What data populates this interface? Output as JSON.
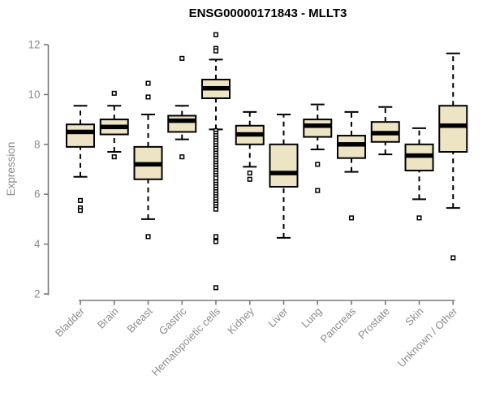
{
  "chart_data": {
    "type": "boxplot",
    "title": "ENSG00000171843 - MLLT3",
    "ylabel": "Expression",
    "xlabel": "",
    "ylim": [
      2,
      12
    ],
    "yticks": [
      2,
      4,
      6,
      8,
      10,
      12
    ],
    "grid": false,
    "legend": null,
    "categories": [
      "Bladder",
      "Brain",
      "Breast",
      "Gastric",
      "Hematopoietic cells",
      "Kidney",
      "Liver",
      "Lung",
      "Pancreas",
      "Prostate",
      "Skin",
      "Unknown / Other"
    ],
    "series": [
      {
        "category": "Bladder",
        "low": 6.7,
        "q1": 7.9,
        "median": 8.5,
        "q3": 8.8,
        "high": 9.55,
        "outliers": [
          5.75,
          5.45,
          5.35
        ]
      },
      {
        "category": "Brain",
        "low": 7.7,
        "q1": 8.4,
        "median": 8.7,
        "q3": 9.0,
        "high": 9.55,
        "outliers": [
          10.05,
          7.5
        ]
      },
      {
        "category": "Breast",
        "low": 5.0,
        "q1": 6.6,
        "median": 7.2,
        "q3": 7.9,
        "high": 9.2,
        "outliers": [
          10.45,
          9.9,
          4.3
        ]
      },
      {
        "category": "Gastric",
        "low": 8.2,
        "q1": 8.5,
        "median": 8.95,
        "q3": 9.15,
        "high": 9.55,
        "outliers": [
          11.45,
          7.5
        ]
      },
      {
        "category": "Hematopoietic cells",
        "low": 8.6,
        "q1": 9.85,
        "median": 10.25,
        "q3": 10.6,
        "high": 11.4,
        "outliers": [
          12.4,
          11.85,
          11.75,
          8.55,
          8.45,
          8.35,
          8.25,
          8.15,
          8.05,
          7.95,
          7.85,
          7.75,
          7.65,
          7.55,
          7.45,
          7.35,
          7.25,
          7.15,
          7.05,
          6.95,
          6.85,
          6.75,
          6.65,
          6.5,
          6.4,
          6.3,
          6.2,
          6.1,
          6.0,
          5.9,
          5.8,
          5.7,
          5.6,
          5.5,
          5.4,
          4.3,
          4.1,
          2.25
        ]
      },
      {
        "category": "Kidney",
        "low": 7.1,
        "q1": 8.0,
        "median": 8.4,
        "q3": 8.75,
        "high": 9.3,
        "outliers": [
          6.85,
          6.6
        ]
      },
      {
        "category": "Liver",
        "low": 4.25,
        "q1": 6.3,
        "median": 6.85,
        "q3": 8.0,
        "high": 9.2,
        "outliers": []
      },
      {
        "category": "Lung",
        "low": 7.8,
        "q1": 8.3,
        "median": 8.75,
        "q3": 9.0,
        "high": 9.6,
        "outliers": [
          7.2,
          6.15
        ]
      },
      {
        "category": "Pancreas",
        "low": 6.9,
        "q1": 7.45,
        "median": 8.0,
        "q3": 8.35,
        "high": 9.3,
        "outliers": [
          5.05
        ]
      },
      {
        "category": "Prostate",
        "low": 7.6,
        "q1": 8.1,
        "median": 8.45,
        "q3": 8.9,
        "high": 9.5,
        "outliers": []
      },
      {
        "category": "Skin",
        "low": 5.8,
        "q1": 6.95,
        "median": 7.55,
        "q3": 8.0,
        "high": 8.65,
        "outliers": [
          5.05
        ]
      },
      {
        "category": "Unknown / Other",
        "low": 5.45,
        "q1": 7.7,
        "median": 8.75,
        "q3": 9.55,
        "high": 11.65,
        "outliers": [
          3.45
        ]
      }
    ],
    "colors": {
      "box_fill": "#EDE4C4",
      "box_line": "#000000",
      "median_line": "#000000",
      "axis_line": "#7a7a7a",
      "tick_text": "#8c8c8c",
      "title_text": "#000000",
      "background": "#ffffff"
    }
  }
}
